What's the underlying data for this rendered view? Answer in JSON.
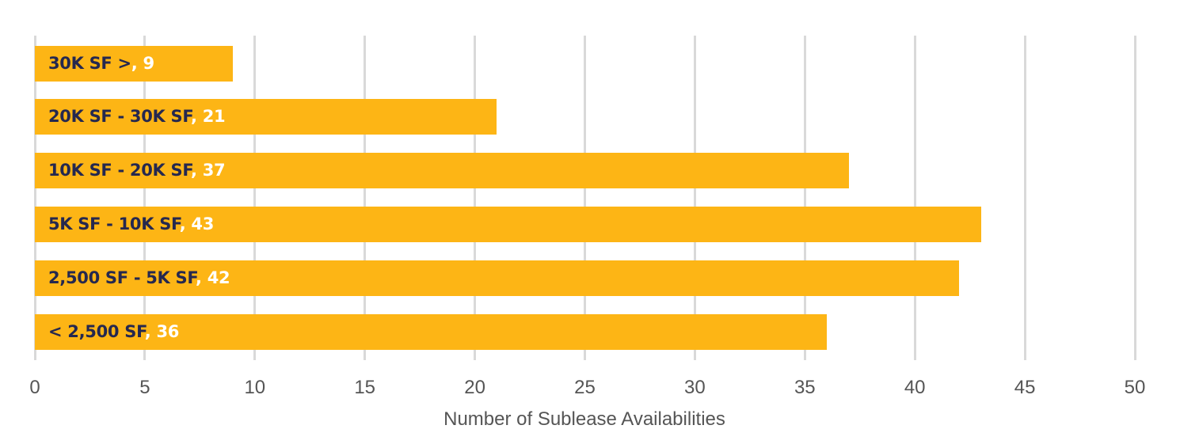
{
  "chart_data": {
    "type": "bar",
    "orientation": "horizontal",
    "title": "",
    "xlabel": "Number of Sublease Availabilities",
    "ylabel": "",
    "xlim": [
      0,
      50
    ],
    "xticks": [
      0,
      5,
      10,
      15,
      20,
      25,
      30,
      35,
      40,
      45,
      50
    ],
    "grid": true,
    "legend": "none",
    "categories": [
      "30K SF >",
      "20K SF - 30K SF",
      "10K SF - 20K SF",
      "5K SF - 10K SF",
      "2,500 SF - 5K SF",
      "< 2,500 SF"
    ],
    "values": [
      9,
      21,
      37,
      43,
      42,
      36
    ],
    "colors": {
      "bar": "#fdb515",
      "category_text": "#25284f",
      "value_text": "#ffffff",
      "grid": "#d9d9d9",
      "axis_text": "#555555"
    }
  }
}
